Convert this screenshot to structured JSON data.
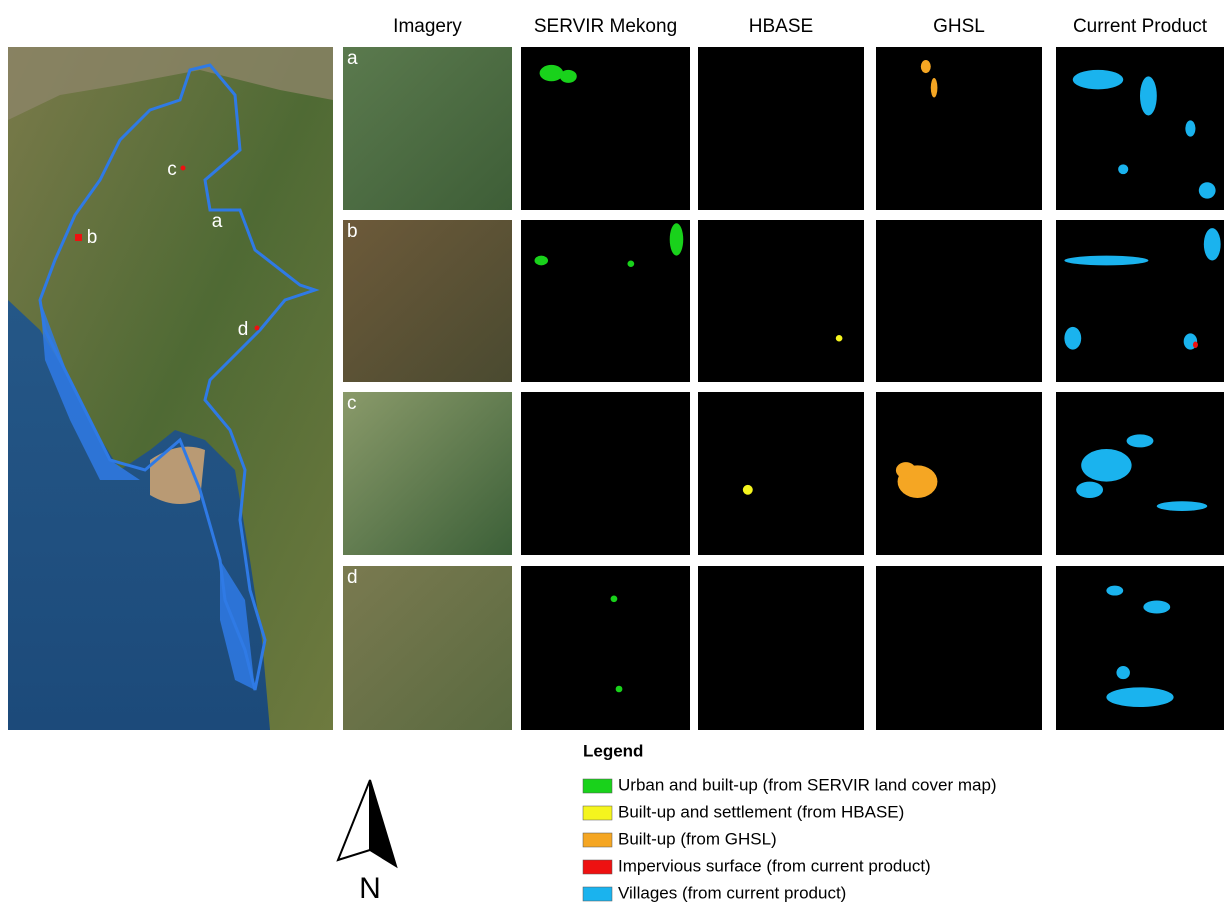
{
  "columns": [
    "Imagery",
    "SERVIR Mekong",
    "HBASE",
    "GHSL",
    "Current Product"
  ],
  "rows": [
    "a",
    "b",
    "c",
    "d"
  ],
  "map_labels": [
    "a",
    "b",
    "c",
    "d"
  ],
  "legend": {
    "title": "Legend",
    "items": [
      {
        "label": "Urban and built-up (from SERVIR land cover map)",
        "color": "#19d21b"
      },
      {
        "label": "Built-up and settlement (from HBASE)",
        "color": "#f5f51e"
      },
      {
        "label": "Built-up (from GHSL)",
        "color": "#f5a623"
      },
      {
        "label": "Impervious surface (from current product)",
        "color": "#ee1111"
      },
      {
        "label": "Villages (from current product)",
        "color": "#1ab3ee"
      }
    ]
  },
  "north_label": "N"
}
